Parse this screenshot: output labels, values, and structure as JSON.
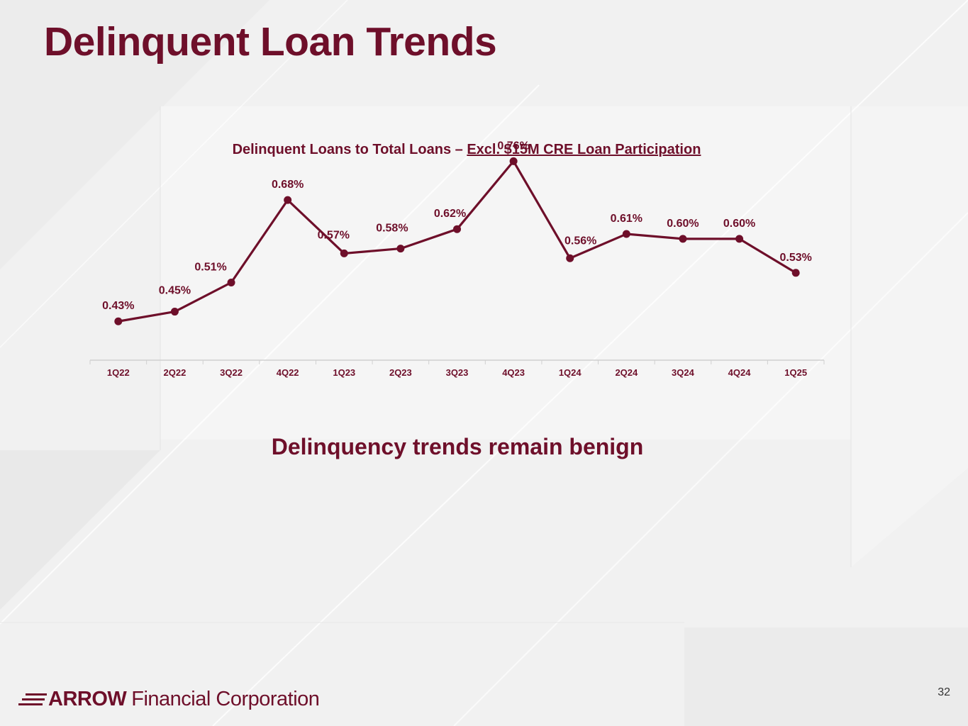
{
  "slide": {
    "title": "Delinquent Loan Trends",
    "subtitle": "Delinquency trends remain benign",
    "page_number": "32",
    "logo": {
      "brand": "ARROW",
      "rest": "Financial Corporation"
    }
  },
  "colors": {
    "accent": "#6e0f2a",
    "axis": "#d0d0d0",
    "tick_text": "#6e0f2a"
  },
  "chart_data": {
    "type": "line",
    "title_plain": "Delinquent Loans to Total Loans – ",
    "title_underlined": "Excl. $15M CRE Loan Participation",
    "categories": [
      "1Q22",
      "2Q22",
      "3Q22",
      "4Q22",
      "1Q23",
      "2Q23",
      "3Q23",
      "4Q23",
      "1Q24",
      "2Q24",
      "3Q24",
      "4Q24",
      "1Q25"
    ],
    "series": [
      {
        "values": [
          0.43,
          0.45,
          0.51,
          0.68,
          0.57,
          0.58,
          0.62,
          0.76,
          0.56,
          0.61,
          0.6,
          0.6,
          0.53
        ]
      }
    ],
    "data_labels": [
      "0.43%",
      "0.45%",
      "0.51%",
      "0.68%",
      "0.57%",
      "0.58%",
      "0.62%",
      "0.76%",
      "0.56%",
      "0.61%",
      "0.60%",
      "0.60%",
      "0.53%"
    ],
    "ylim": [
      0.35,
      0.8
    ],
    "grid": false,
    "legend": "none"
  }
}
